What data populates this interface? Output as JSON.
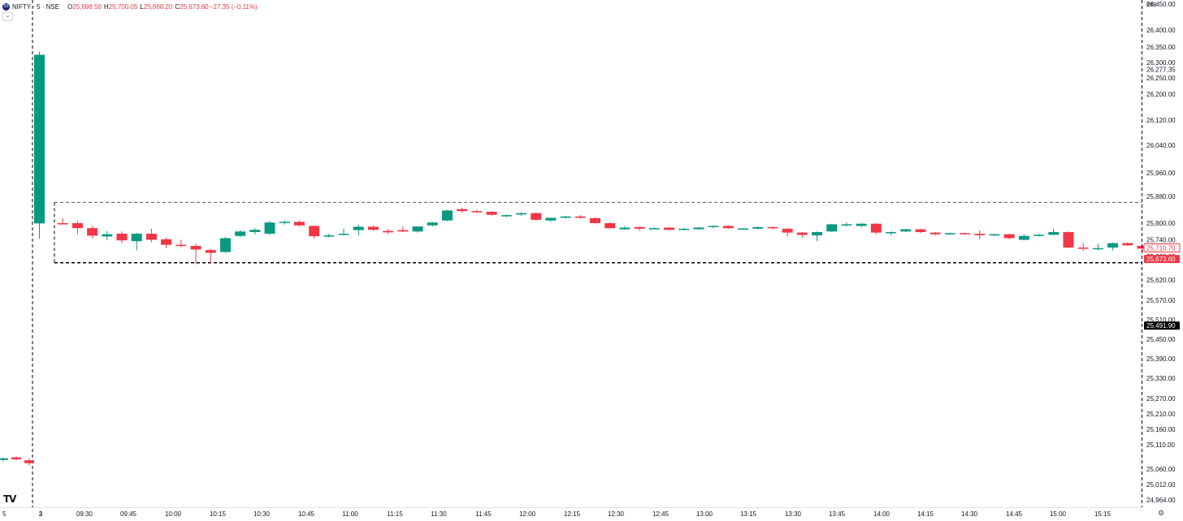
{
  "legend": {
    "symbol": "NIFTY · 5 · NSE",
    "open_label": "O",
    "open": "25,698.50",
    "high_label": "H",
    "high": "25,700.05",
    "low_label": "L",
    "low": "25,660.20",
    "close_label": "C",
    "close": "25,673.60",
    "change": "−27.35 (−0.11%)",
    "logo_text": "50",
    "collapse_icon": "chevron-down-icon"
  },
  "currency": "INR",
  "brand": "TV",
  "settings_icon": "gear-icon",
  "colors": {
    "up": "#089981",
    "down": "#f23645",
    "axis_text": "#131722",
    "box": "#000000",
    "highlight": "#000000"
  },
  "chart_data": {
    "type": "candlestick",
    "x_ticks": [
      "5",
      "3",
      "09:30",
      "09:45",
      "10:00",
      "10:15",
      "10:30",
      "10:45",
      "11:00",
      "11:15",
      "11:30",
      "11:45",
      "12:00",
      "12:15",
      "12:30",
      "12:45",
      "13:00",
      "13:15",
      "13:30",
      "13:45",
      "14:00",
      "14:15",
      "14:30",
      "14:45",
      "15:00",
      "15:15"
    ],
    "y_ticks": [
      26450,
      26400,
      26350,
      26300,
      26250,
      26200,
      26120,
      26040,
      25960,
      25880,
      25800,
      25740,
      25680,
      25620,
      25570,
      25510,
      25450,
      25390,
      25330,
      25270,
      25210,
      25160,
      25110,
      25060,
      25012,
      24964
    ],
    "y_range": [
      24950,
      26470
    ],
    "price_labels": [
      {
        "value": 26277.35,
        "text": "26,277.35",
        "style": "plain"
      },
      {
        "value": 25710.7,
        "text": "25,710.70",
        "style": "outlined-red"
      },
      {
        "value": 25673.6,
        "text": "25,673.60",
        "style": "filled-red"
      },
      {
        "value": 25491.9,
        "text": "25,491.90",
        "style": "filled-black"
      }
    ],
    "previous_session": [
      {
        "o": 25080,
        "h": 25084,
        "l": 25076,
        "c": 25082
      },
      {
        "o": 25084,
        "h": 25086,
        "l": 25078,
        "c": 25080
      },
      {
        "o": 25078,
        "h": 25082,
        "l": 25068,
        "c": 25072
      }
    ],
    "candles": [
      {
        "o": 25799,
        "h": 26335,
        "l": 25744,
        "c": 26325
      },
      {
        "o": 25800,
        "h": 25815,
        "l": 25795,
        "c": 25798
      },
      {
        "o": 25800,
        "h": 25808,
        "l": 25760,
        "c": 25782
      },
      {
        "o": 25782,
        "h": 25790,
        "l": 25745,
        "c": 25755
      },
      {
        "o": 25752,
        "h": 25772,
        "l": 25738,
        "c": 25760
      },
      {
        "o": 25762,
        "h": 25770,
        "l": 25728,
        "c": 25738
      },
      {
        "o": 25735,
        "h": 25765,
        "l": 25702,
        "c": 25762
      },
      {
        "o": 25762,
        "h": 25780,
        "l": 25732,
        "c": 25740
      },
      {
        "o": 25742,
        "h": 25748,
        "l": 25710,
        "c": 25722
      },
      {
        "o": 25722,
        "h": 25740,
        "l": 25714,
        "c": 25720
      },
      {
        "o": 25718,
        "h": 25725,
        "l": 25660,
        "c": 25705
      },
      {
        "o": 25703,
        "h": 25707,
        "l": 25664,
        "c": 25693
      },
      {
        "o": 25696,
        "h": 25750,
        "l": 25693,
        "c": 25746
      },
      {
        "o": 25754,
        "h": 25774,
        "l": 25750,
        "c": 25770
      },
      {
        "o": 25768,
        "h": 25782,
        "l": 25760,
        "c": 25776
      },
      {
        "o": 25762,
        "h": 25806,
        "l": 25757,
        "c": 25802
      },
      {
        "o": 25801,
        "h": 25808,
        "l": 25795,
        "c": 25804
      },
      {
        "o": 25804,
        "h": 25808,
        "l": 25788,
        "c": 25792
      },
      {
        "o": 25790,
        "h": 25792,
        "l": 25744,
        "c": 25753
      },
      {
        "o": 25755,
        "h": 25762,
        "l": 25748,
        "c": 25756
      },
      {
        "o": 25758,
        "h": 25780,
        "l": 25756,
        "c": 25762
      },
      {
        "o": 25775,
        "h": 25795,
        "l": 25755,
        "c": 25787
      },
      {
        "o": 25787,
        "h": 25791,
        "l": 25773,
        "c": 25776
      },
      {
        "o": 25772,
        "h": 25778,
        "l": 25760,
        "c": 25767
      },
      {
        "o": 25775,
        "h": 25788,
        "l": 25768,
        "c": 25770
      },
      {
        "o": 25770,
        "h": 25782,
        "l": 25766,
        "c": 25788
      },
      {
        "o": 25792,
        "h": 25804,
        "l": 25788,
        "c": 25802
      },
      {
        "o": 25808,
        "h": 25840,
        "l": 25806,
        "c": 25838
      },
      {
        "o": 25842,
        "h": 25846,
        "l": 25832,
        "c": 25836
      },
      {
        "o": 25836,
        "h": 25840,
        "l": 25830,
        "c": 25834
      },
      {
        "o": 25834,
        "h": 25836,
        "l": 25822,
        "c": 25825
      },
      {
        "o": 25822,
        "h": 25826,
        "l": 25818,
        "c": 25824
      },
      {
        "o": 25826,
        "h": 25832,
        "l": 25822,
        "c": 25830
      },
      {
        "o": 25830,
        "h": 25832,
        "l": 25808,
        "c": 25810
      },
      {
        "o": 25808,
        "h": 25816,
        "l": 25804,
        "c": 25816
      },
      {
        "o": 25816,
        "h": 25822,
        "l": 25814,
        "c": 25820
      },
      {
        "o": 25820,
        "h": 25824,
        "l": 25814,
        "c": 25816
      },
      {
        "o": 25815,
        "h": 25818,
        "l": 25798,
        "c": 25800
      },
      {
        "o": 25800,
        "h": 25802,
        "l": 25780,
        "c": 25782
      },
      {
        "o": 25778,
        "h": 25790,
        "l": 25776,
        "c": 25784
      },
      {
        "o": 25786,
        "h": 25788,
        "l": 25772,
        "c": 25780
      },
      {
        "o": 25780,
        "h": 25784,
        "l": 25778,
        "c": 25782
      },
      {
        "o": 25784,
        "h": 25786,
        "l": 25774,
        "c": 25776
      },
      {
        "o": 25776,
        "h": 25782,
        "l": 25774,
        "c": 25780
      },
      {
        "o": 25778,
        "h": 25786,
        "l": 25776,
        "c": 25784
      },
      {
        "o": 25786,
        "h": 25792,
        "l": 25782,
        "c": 25790
      },
      {
        "o": 25790,
        "h": 25792,
        "l": 25780,
        "c": 25782
      },
      {
        "o": 25780,
        "h": 25782,
        "l": 25778,
        "c": 25781
      },
      {
        "o": 25780,
        "h": 25788,
        "l": 25778,
        "c": 25786
      },
      {
        "o": 25786,
        "h": 25788,
        "l": 25778,
        "c": 25782
      },
      {
        "o": 25780,
        "h": 25782,
        "l": 25752,
        "c": 25766
      },
      {
        "o": 25766,
        "h": 25768,
        "l": 25748,
        "c": 25758
      },
      {
        "o": 25756,
        "h": 25770,
        "l": 25735,
        "c": 25768
      },
      {
        "o": 25770,
        "h": 25798,
        "l": 25768,
        "c": 25796
      },
      {
        "o": 25792,
        "h": 25802,
        "l": 25787,
        "c": 25796
      },
      {
        "o": 25790,
        "h": 25800,
        "l": 25786,
        "c": 25798
      },
      {
        "o": 25798,
        "h": 25800,
        "l": 25760,
        "c": 25766
      },
      {
        "o": 25766,
        "h": 25770,
        "l": 25756,
        "c": 25768
      },
      {
        "o": 25770,
        "h": 25780,
        "l": 25768,
        "c": 25778
      },
      {
        "o": 25778,
        "h": 25780,
        "l": 25764,
        "c": 25768
      },
      {
        "o": 25766,
        "h": 25768,
        "l": 25756,
        "c": 25760
      },
      {
        "o": 25760,
        "h": 25766,
        "l": 25758,
        "c": 25764
      },
      {
        "o": 25764,
        "h": 25766,
        "l": 25760,
        "c": 25762
      },
      {
        "o": 25762,
        "h": 25774,
        "l": 25742,
        "c": 25757
      },
      {
        "o": 25758,
        "h": 25762,
        "l": 25754,
        "c": 25760
      },
      {
        "o": 25760,
        "h": 25762,
        "l": 25742,
        "c": 25746
      },
      {
        "o": 25740,
        "h": 25760,
        "l": 25738,
        "c": 25754
      },
      {
        "o": 25754,
        "h": 25762,
        "l": 25752,
        "c": 25758
      },
      {
        "o": 25758,
        "h": 25780,
        "l": 25756,
        "c": 25768
      },
      {
        "o": 25768,
        "h": 25770,
        "l": 25710,
        "c": 25712
      },
      {
        "o": 25712,
        "h": 25728,
        "l": 25700,
        "c": 25710
      },
      {
        "o": 25708,
        "h": 25726,
        "l": 25702,
        "c": 25710
      },
      {
        "o": 25712,
        "h": 25730,
        "l": 25702,
        "c": 25728
      },
      {
        "o": 25728,
        "h": 25730,
        "l": 25718,
        "c": 25720
      },
      {
        "o": 25718,
        "h": 25720,
        "l": 25696,
        "c": 25708
      }
    ],
    "range_box": {
      "top": 25862,
      "bottom": 25664,
      "start_index": 1
    }
  }
}
